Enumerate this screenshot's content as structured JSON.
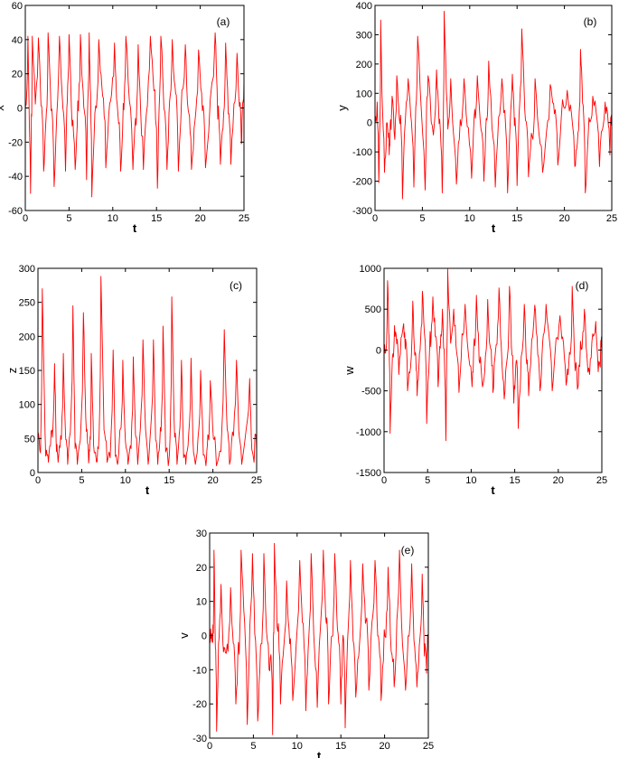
{
  "colors": {
    "series": "#ff0000",
    "axis": "#000000",
    "background": "#ffffff"
  },
  "chart_data": [
    {
      "type": "line",
      "panel_label": "(a)",
      "xlabel": "t",
      "ylabel": "x",
      "xlim": [
        0,
        25
      ],
      "ylim": [
        -60,
        60
      ],
      "xticks": [
        "0",
        "5",
        "10",
        "15",
        "20",
        "25"
      ],
      "yticks": [
        "-60",
        "-40",
        "-20",
        "0",
        "20",
        "40",
        "60"
      ],
      "grid": false,
      "x_interval": [
        0,
        25
      ],
      "peaks": [
        {
          "t": 0.3,
          "v": 42
        },
        {
          "t": 0.6,
          "v": -50
        },
        {
          "t": 0.8,
          "v": 42
        },
        {
          "t": 1.5,
          "v": 41
        },
        {
          "t": 2.1,
          "v": -37
        },
        {
          "t": 2.6,
          "v": 44
        },
        {
          "t": 3.3,
          "v": -46
        },
        {
          "t": 3.9,
          "v": 42
        },
        {
          "t": 4.6,
          "v": -37
        },
        {
          "t": 5.0,
          "v": 43
        },
        {
          "t": 5.7,
          "v": -36
        },
        {
          "t": 6.3,
          "v": 43
        },
        {
          "t": 7.0,
          "v": -42
        },
        {
          "t": 7.3,
          "v": 44
        },
        {
          "t": 7.6,
          "v": -52
        },
        {
          "t": 8.4,
          "v": 40
        },
        {
          "t": 9.2,
          "v": -35
        },
        {
          "t": 10.2,
          "v": 38
        },
        {
          "t": 10.9,
          "v": -37
        },
        {
          "t": 11.5,
          "v": 42
        },
        {
          "t": 12.3,
          "v": -36
        },
        {
          "t": 12.9,
          "v": 37
        },
        {
          "t": 13.5,
          "v": -36
        },
        {
          "t": 14.3,
          "v": 42
        },
        {
          "t": 15.1,
          "v": -47
        },
        {
          "t": 15.5,
          "v": 42
        },
        {
          "t": 16.2,
          "v": -36
        },
        {
          "t": 16.8,
          "v": 40
        },
        {
          "t": 17.5,
          "v": -37
        },
        {
          "t": 18.3,
          "v": 37
        },
        {
          "t": 19.0,
          "v": -36
        },
        {
          "t": 19.8,
          "v": 34
        },
        {
          "t": 20.6,
          "v": -35
        },
        {
          "t": 21.7,
          "v": 44
        },
        {
          "t": 22.3,
          "v": -33
        },
        {
          "t": 22.9,
          "v": 38
        },
        {
          "t": 23.5,
          "v": -33
        },
        {
          "t": 24.2,
          "v": 32
        },
        {
          "t": 24.7,
          "v": -21
        },
        {
          "t": 25.0,
          "v": 16
        }
      ]
    },
    {
      "type": "line",
      "panel_label": "(b)",
      "xlabel": "t",
      "ylabel": "y",
      "xlim": [
        0,
        25
      ],
      "ylim": [
        -300,
        400
      ],
      "xticks": [
        "0",
        "5",
        "10",
        "15",
        "20",
        "25"
      ],
      "yticks": [
        "-300",
        "-200",
        "-100",
        "0",
        "100",
        "200",
        "300",
        "400"
      ],
      "grid": false,
      "x_interval": [
        0,
        25
      ],
      "peaks": [
        {
          "t": 0.4,
          "v": -205
        },
        {
          "t": 0.6,
          "v": 350
        },
        {
          "t": 1.0,
          "v": -170
        },
        {
          "t": 1.5,
          "v": -110
        },
        {
          "t": 1.8,
          "v": 90
        },
        {
          "t": 2.3,
          "v": 160
        },
        {
          "t": 2.9,
          "v": -260
        },
        {
          "t": 3.5,
          "v": 150
        },
        {
          "t": 4.1,
          "v": -220
        },
        {
          "t": 4.5,
          "v": 295
        },
        {
          "t": 5.3,
          "v": -230
        },
        {
          "t": 5.6,
          "v": 160
        },
        {
          "t": 6.5,
          "v": 180
        },
        {
          "t": 7.1,
          "v": -240
        },
        {
          "t": 7.3,
          "v": 380
        },
        {
          "t": 8.0,
          "v": 150
        },
        {
          "t": 8.6,
          "v": -210
        },
        {
          "t": 9.4,
          "v": 150
        },
        {
          "t": 10.2,
          "v": -190
        },
        {
          "t": 10.8,
          "v": 160
        },
        {
          "t": 11.5,
          "v": -200
        },
        {
          "t": 12.0,
          "v": 210
        },
        {
          "t": 12.7,
          "v": -220
        },
        {
          "t": 13.4,
          "v": 150
        },
        {
          "t": 14.0,
          "v": -240
        },
        {
          "t": 14.5,
          "v": 165
        },
        {
          "t": 15.0,
          "v": -215
        },
        {
          "t": 15.5,
          "v": 320
        },
        {
          "t": 16.2,
          "v": -185
        },
        {
          "t": 16.9,
          "v": 150
        },
        {
          "t": 17.7,
          "v": -170
        },
        {
          "t": 18.5,
          "v": 130
        },
        {
          "t": 19.3,
          "v": -145
        },
        {
          "t": 20.3,
          "v": 110
        },
        {
          "t": 21.1,
          "v": -150
        },
        {
          "t": 21.7,
          "v": 250
        },
        {
          "t": 22.2,
          "v": -240
        },
        {
          "t": 23.0,
          "v": 90
        },
        {
          "t": 23.7,
          "v": -150
        },
        {
          "t": 24.3,
          "v": 70
        },
        {
          "t": 24.8,
          "v": -110
        },
        {
          "t": 25.0,
          "v": 20
        }
      ]
    },
    {
      "type": "line",
      "panel_label": "(c)",
      "xlabel": "t",
      "ylabel": "z",
      "xlim": [
        0,
        25
      ],
      "ylim": [
        0,
        300
      ],
      "xticks": [
        "0",
        "5",
        "10",
        "15",
        "20",
        "25"
      ],
      "yticks": [
        "0",
        "50",
        "100",
        "150",
        "200",
        "250",
        "300"
      ],
      "grid": false,
      "x_interval": [
        0,
        25
      ],
      "peaks": [
        {
          "t": 0.5,
          "v": 270
        },
        {
          "t": 1.2,
          "v": 15
        },
        {
          "t": 1.9,
          "v": 160
        },
        {
          "t": 2.3,
          "v": 15
        },
        {
          "t": 2.9,
          "v": 175
        },
        {
          "t": 3.4,
          "v": 12
        },
        {
          "t": 4.0,
          "v": 245
        },
        {
          "t": 4.5,
          "v": 12
        },
        {
          "t": 5.2,
          "v": 235
        },
        {
          "t": 5.8,
          "v": 14
        },
        {
          "t": 6.1,
          "v": 175
        },
        {
          "t": 6.7,
          "v": 15
        },
        {
          "t": 7.2,
          "v": 288
        },
        {
          "t": 7.9,
          "v": 15
        },
        {
          "t": 8.6,
          "v": 180
        },
        {
          "t": 9.1,
          "v": 12
        },
        {
          "t": 9.7,
          "v": 165
        },
        {
          "t": 10.3,
          "v": 12
        },
        {
          "t": 10.9,
          "v": 170
        },
        {
          "t": 11.4,
          "v": 12
        },
        {
          "t": 12.0,
          "v": 195
        },
        {
          "t": 12.6,
          "v": 12
        },
        {
          "t": 13.2,
          "v": 195
        },
        {
          "t": 13.7,
          "v": 12
        },
        {
          "t": 14.3,
          "v": 215
        },
        {
          "t": 14.9,
          "v": 10
        },
        {
          "t": 15.3,
          "v": 258
        },
        {
          "t": 15.9,
          "v": 12
        },
        {
          "t": 16.4,
          "v": 165
        },
        {
          "t": 16.9,
          "v": 12
        },
        {
          "t": 17.5,
          "v": 168
        },
        {
          "t": 18.0,
          "v": 12
        },
        {
          "t": 18.6,
          "v": 150
        },
        {
          "t": 19.2,
          "v": 10
        },
        {
          "t": 19.7,
          "v": 135
        },
        {
          "t": 20.4,
          "v": 10
        },
        {
          "t": 21.3,
          "v": 210
        },
        {
          "t": 21.9,
          "v": 12
        },
        {
          "t": 22.7,
          "v": 165
        },
        {
          "t": 23.3,
          "v": 12
        },
        {
          "t": 24.2,
          "v": 138
        },
        {
          "t": 24.7,
          "v": 15
        },
        {
          "t": 25.0,
          "v": 30
        }
      ]
    },
    {
      "type": "line",
      "panel_label": "(d)",
      "xlabel": "t",
      "ylabel": "w",
      "xlim": [
        0,
        25
      ],
      "ylim": [
        -1500,
        1000
      ],
      "xticks": [
        "0",
        "5",
        "10",
        "15",
        "20",
        "25"
      ],
      "yticks": [
        "-1500",
        "-1000",
        "-500",
        "0",
        "500",
        "1000"
      ],
      "grid": false,
      "x_interval": [
        0,
        25
      ],
      "peaks": [
        {
          "t": 0.4,
          "v": 850
        },
        {
          "t": 0.7,
          "v": -1020
        },
        {
          "t": 1.2,
          "v": 300
        },
        {
          "t": 1.7,
          "v": -300
        },
        {
          "t": 2.2,
          "v": 290
        },
        {
          "t": 2.7,
          "v": -500
        },
        {
          "t": 3.3,
          "v": 600
        },
        {
          "t": 3.8,
          "v": -560
        },
        {
          "t": 4.4,
          "v": 720
        },
        {
          "t": 4.9,
          "v": -900
        },
        {
          "t": 5.6,
          "v": 650
        },
        {
          "t": 6.2,
          "v": -450
        },
        {
          "t": 6.7,
          "v": 500
        },
        {
          "t": 7.1,
          "v": -1110
        },
        {
          "t": 7.3,
          "v": 990
        },
        {
          "t": 8.0,
          "v": 500
        },
        {
          "t": 8.6,
          "v": -520
        },
        {
          "t": 9.3,
          "v": 560
        },
        {
          "t": 10.1,
          "v": -450
        },
        {
          "t": 10.6,
          "v": 670
        },
        {
          "t": 11.3,
          "v": -450
        },
        {
          "t": 11.9,
          "v": 620
        },
        {
          "t": 12.5,
          "v": -520
        },
        {
          "t": 13.2,
          "v": 760
        },
        {
          "t": 13.8,
          "v": -600
        },
        {
          "t": 14.4,
          "v": 780
        },
        {
          "t": 14.9,
          "v": -650
        },
        {
          "t": 15.4,
          "v": -960
        },
        {
          "t": 16.1,
          "v": 560
        },
        {
          "t": 16.6,
          "v": -560
        },
        {
          "t": 17.3,
          "v": 550
        },
        {
          "t": 17.9,
          "v": -500
        },
        {
          "t": 18.6,
          "v": 560
        },
        {
          "t": 19.3,
          "v": -500
        },
        {
          "t": 20.2,
          "v": 420
        },
        {
          "t": 20.9,
          "v": -430
        },
        {
          "t": 21.6,
          "v": 780
        },
        {
          "t": 22.2,
          "v": -480
        },
        {
          "t": 23.0,
          "v": 500
        },
        {
          "t": 23.6,
          "v": -300
        },
        {
          "t": 24.3,
          "v": 350
        },
        {
          "t": 24.8,
          "v": -200
        },
        {
          "t": 25.0,
          "v": 50
        }
      ]
    },
    {
      "type": "line",
      "panel_label": "(e)",
      "xlabel": "t",
      "ylabel": "v",
      "xlim": [
        0,
        25
      ],
      "ylim": [
        -30,
        30
      ],
      "xticks": [
        "0",
        "5",
        "10",
        "15",
        "20",
        "25"
      ],
      "yticks": [
        "-30",
        "-20",
        "-10",
        "0",
        "10",
        "20",
        "30"
      ],
      "grid": false,
      "x_interval": [
        0,
        25
      ],
      "peaks": [
        {
          "t": 0.3,
          "v": -2
        },
        {
          "t": 0.5,
          "v": 25
        },
        {
          "t": 0.8,
          "v": -28
        },
        {
          "t": 1.3,
          "v": 15
        },
        {
          "t": 1.8,
          "v": -5
        },
        {
          "t": 2.4,
          "v": 14
        },
        {
          "t": 3.0,
          "v": -20
        },
        {
          "t": 3.6,
          "v": 25
        },
        {
          "t": 4.3,
          "v": -26
        },
        {
          "t": 4.9,
          "v": 24
        },
        {
          "t": 5.5,
          "v": -25
        },
        {
          "t": 6.2,
          "v": 24
        },
        {
          "t": 6.8,
          "v": -10
        },
        {
          "t": 7.2,
          "v": -29
        },
        {
          "t": 7.4,
          "v": 27
        },
        {
          "t": 8.1,
          "v": -20
        },
        {
          "t": 8.8,
          "v": 16
        },
        {
          "t": 9.5,
          "v": -19
        },
        {
          "t": 10.3,
          "v": 22
        },
        {
          "t": 11.0,
          "v": -22
        },
        {
          "t": 11.6,
          "v": 24
        },
        {
          "t": 12.3,
          "v": -21
        },
        {
          "t": 13.0,
          "v": 25
        },
        {
          "t": 13.6,
          "v": -20
        },
        {
          "t": 14.3,
          "v": 24
        },
        {
          "t": 15.0,
          "v": -20
        },
        {
          "t": 15.5,
          "v": -27
        },
        {
          "t": 16.1,
          "v": 22
        },
        {
          "t": 16.7,
          "v": -18
        },
        {
          "t": 17.5,
          "v": 21
        },
        {
          "t": 18.2,
          "v": -16
        },
        {
          "t": 18.9,
          "v": 22
        },
        {
          "t": 19.6,
          "v": -19
        },
        {
          "t": 20.4,
          "v": 20
        },
        {
          "t": 21.1,
          "v": -15
        },
        {
          "t": 21.7,
          "v": 25
        },
        {
          "t": 22.4,
          "v": -16
        },
        {
          "t": 23.1,
          "v": 21
        },
        {
          "t": 23.7,
          "v": -15
        },
        {
          "t": 24.3,
          "v": 18
        },
        {
          "t": 24.8,
          "v": -11
        },
        {
          "t": 25.0,
          "v": 0
        }
      ]
    }
  ]
}
